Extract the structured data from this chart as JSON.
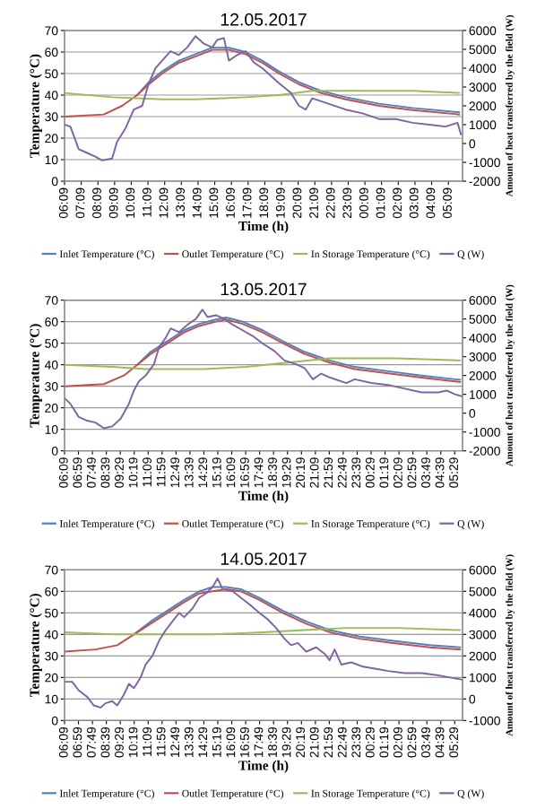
{
  "chart_data": [
    {
      "type": "line",
      "title": "12.05.2017",
      "xlabel": "Time (h)",
      "ylabel": "Temperature (°C)",
      "y2label": "Amount of heat transferred by the field (W)",
      "legend": "bottom",
      "grid": "y",
      "line_style": "solid",
      "marker": "none",
      "xlim": [
        "2017-05-12T06:09",
        "2017-05-13T06:00"
      ],
      "xticks": [
        {
          "value": "2017-05-12T06:09",
          "label": "06:09"
        },
        {
          "value": "2017-05-12T07:09",
          "label": "07:09"
        },
        {
          "value": "2017-05-12T08:09",
          "label": "08:09"
        },
        {
          "value": "2017-05-12T09:09",
          "label": "09:09"
        },
        {
          "value": "2017-05-12T10:09",
          "label": "10:09"
        },
        {
          "value": "2017-05-12T11:09",
          "label": "11:09"
        },
        {
          "value": "2017-05-12T12:09",
          "label": "12:09"
        },
        {
          "value": "2017-05-12T13:09",
          "label": "13:09"
        },
        {
          "value": "2017-05-12T14:09",
          "label": "14:09"
        },
        {
          "value": "2017-05-12T15:09",
          "label": "15:09"
        },
        {
          "value": "2017-05-12T16:09",
          "label": "16:09"
        },
        {
          "value": "2017-05-12T17:09",
          "label": "17:09"
        },
        {
          "value": "2017-05-12T18:09",
          "label": "18:09"
        },
        {
          "value": "2017-05-12T19:09",
          "label": "19:09"
        },
        {
          "value": "2017-05-12T20:09",
          "label": "20:09"
        },
        {
          "value": "2017-05-12T21:09",
          "label": "21:09"
        },
        {
          "value": "2017-05-12T22:09",
          "label": "22:09"
        },
        {
          "value": "2017-05-12T23:09",
          "label": "23:09"
        },
        {
          "value": "2017-05-13T00:09",
          "label": "00:09"
        },
        {
          "value": "2017-05-13T01:09",
          "label": "01:09"
        },
        {
          "value": "2017-05-13T02:09",
          "label": "02:09"
        },
        {
          "value": "2017-05-13T03:09",
          "label": "03:09"
        },
        {
          "value": "2017-05-13T04:09",
          "label": "04:09"
        },
        {
          "value": "2017-05-13T05:09",
          "label": "05:09"
        }
      ],
      "ylim": [
        0,
        70
      ],
      "yticks": [
        0,
        10,
        20,
        30,
        40,
        50,
        60,
        70
      ],
      "y2lim": [
        -2000,
        6000
      ],
      "y2ticks": [
        -2000,
        -1000,
        0,
        1000,
        2000,
        3000,
        4000,
        5000,
        6000
      ],
      "series": [
        {
          "name": "Inlet Temperature (°C)",
          "color": "#4f81bd",
          "x": [
            "2017-05-12T10:30",
            "2017-05-12T11:12",
            "2017-05-12T12:00",
            "2017-05-12T13:00",
            "2017-05-12T14:00",
            "2017-05-12T15:00",
            "2017-05-12T15:36",
            "2017-05-12T16:00",
            "2017-05-12T17:00",
            "2017-05-12T18:00",
            "2017-05-12T19:00",
            "2017-05-12T20:12",
            "2017-05-12T21:30",
            "2017-05-12T23:00",
            "2017-05-13T01:00",
            "2017-05-13T03:00",
            "2017-05-13T05:48"
          ],
          "values": [
            40,
            46,
            51,
            56,
            59,
            62,
            62,
            62,
            60,
            56,
            51,
            46,
            42,
            39,
            36,
            34,
            32
          ]
        },
        {
          "name": "Outlet Temperature (°C)",
          "color": "#c0504d",
          "x": [
            "2017-05-12T06:09",
            "2017-05-12T08:30",
            "2017-05-12T09:36",
            "2017-05-12T10:30",
            "2017-05-12T11:12",
            "2017-05-12T12:00",
            "2017-05-12T13:00",
            "2017-05-12T14:00",
            "2017-05-12T15:00",
            "2017-05-12T16:00",
            "2017-05-12T17:00",
            "2017-05-12T18:00",
            "2017-05-12T19:00",
            "2017-05-12T20:12",
            "2017-05-12T21:30",
            "2017-05-12T23:00",
            "2017-05-13T01:00",
            "2017-05-13T03:00",
            "2017-05-13T05:48"
          ],
          "values": [
            30,
            31,
            35,
            40,
            45,
            50,
            55,
            58,
            61,
            61,
            59,
            55,
            50,
            45,
            41,
            38,
            35,
            33,
            31
          ]
        },
        {
          "name": "In Storage Temperature (°C)",
          "color": "#9bbb59",
          "x": [
            "2017-05-12T06:09",
            "2017-05-12T09:00",
            "2017-05-12T12:00",
            "2017-05-12T14:00",
            "2017-05-12T17:00",
            "2017-05-12T19:00",
            "2017-05-12T21:00",
            "2017-05-13T00:00",
            "2017-05-13T03:00",
            "2017-05-13T05:48"
          ],
          "values": [
            41,
            39,
            38,
            38,
            39,
            40,
            42,
            42,
            42,
            41
          ]
        },
        {
          "name": "Q (W)",
          "color": "#8064a2",
          "axis": "y2",
          "x": [
            "2017-05-12T06:09",
            "2017-05-12T06:30",
            "2017-05-12T07:00",
            "2017-05-12T07:30",
            "2017-05-12T08:00",
            "2017-05-12T08:24",
            "2017-05-12T09:00",
            "2017-05-12T09:18",
            "2017-05-12T09:48",
            "2017-05-12T10:18",
            "2017-05-12T10:48",
            "2017-05-12T11:12",
            "2017-05-12T11:36",
            "2017-05-12T12:00",
            "2017-05-12T12:30",
            "2017-05-12T13:00",
            "2017-05-12T13:30",
            "2017-05-12T14:00",
            "2017-05-12T14:30",
            "2017-05-12T15:00",
            "2017-05-12T15:18",
            "2017-05-12T15:42",
            "2017-05-12T16:00",
            "2017-05-12T16:30",
            "2017-05-12T17:00",
            "2017-05-12T17:30",
            "2017-05-12T18:00",
            "2017-05-12T19:00",
            "2017-05-12T19:42",
            "2017-05-12T20:12",
            "2017-05-12T20:36",
            "2017-05-12T21:00",
            "2017-05-12T22:00",
            "2017-05-12T23:00",
            "2017-05-13T00:00",
            "2017-05-13T01:00",
            "2017-05-13T02:00",
            "2017-05-13T03:00",
            "2017-05-13T04:00",
            "2017-05-13T05:00",
            "2017-05-13T05:42",
            "2017-05-13T05:54"
          ],
          "values": [
            1000,
            900,
            -300,
            -500,
            -700,
            -900,
            -800,
            100,
            800,
            1800,
            2000,
            3200,
            4000,
            4400,
            4900,
            4700,
            5100,
            5700,
            5300,
            5100,
            5500,
            5600,
            4400,
            4700,
            4900,
            4300,
            4000,
            3200,
            2700,
            2000,
            1800,
            2400,
            2100,
            1800,
            1600,
            1300,
            1300,
            1100,
            1000,
            900,
            1100,
            500
          ]
        }
      ]
    },
    {
      "type": "line",
      "title": "13.05.2017",
      "xlabel": "Time (h)",
      "ylabel": "Temperature (°C)",
      "y2label": "Amount of heat transferred by the field (W)",
      "legend": "bottom",
      "grid": "y",
      "line_style": "solid",
      "marker": "none",
      "xlim": [
        "2017-05-13T06:09",
        "2017-05-14T05:57"
      ],
      "xticks": [
        {
          "value": "2017-05-13T06:09",
          "label": "06:09"
        },
        {
          "value": "2017-05-13T06:59",
          "label": "06:59"
        },
        {
          "value": "2017-05-13T07:49",
          "label": "07:49"
        },
        {
          "value": "2017-05-13T08:39",
          "label": "08:39"
        },
        {
          "value": "2017-05-13T09:29",
          "label": "09:29"
        },
        {
          "value": "2017-05-13T10:19",
          "label": "10:19"
        },
        {
          "value": "2017-05-13T11:09",
          "label": "11:09"
        },
        {
          "value": "2017-05-13T11:59",
          "label": "11:59"
        },
        {
          "value": "2017-05-13T12:49",
          "label": "12:49"
        },
        {
          "value": "2017-05-13T13:39",
          "label": "13:39"
        },
        {
          "value": "2017-05-13T14:29",
          "label": "14:29"
        },
        {
          "value": "2017-05-13T15:19",
          "label": "15:19"
        },
        {
          "value": "2017-05-13T16:09",
          "label": "16:09"
        },
        {
          "value": "2017-05-13T16:59",
          "label": "16:59"
        },
        {
          "value": "2017-05-13T17:49",
          "label": "17:49"
        },
        {
          "value": "2017-05-13T18:39",
          "label": "18:39"
        },
        {
          "value": "2017-05-13T19:29",
          "label": "19:29"
        },
        {
          "value": "2017-05-13T20:19",
          "label": "20:19"
        },
        {
          "value": "2017-05-13T21:09",
          "label": "21:09"
        },
        {
          "value": "2017-05-13T21:59",
          "label": "21:59"
        },
        {
          "value": "2017-05-13T22:49",
          "label": "22:49"
        },
        {
          "value": "2017-05-13T23:39",
          "label": "23:39"
        },
        {
          "value": "2017-05-14T00:29",
          "label": "00:29"
        },
        {
          "value": "2017-05-14T01:19",
          "label": "01:19"
        },
        {
          "value": "2017-05-14T02:09",
          "label": "02:09"
        },
        {
          "value": "2017-05-14T02:59",
          "label": "02:59"
        },
        {
          "value": "2017-05-14T03:49",
          "label": "03:49"
        },
        {
          "value": "2017-05-14T04:39",
          "label": "04:39"
        },
        {
          "value": "2017-05-14T05:29",
          "label": "05:29"
        }
      ],
      "ylim": [
        0,
        70
      ],
      "yticks": [
        0,
        10,
        20,
        30,
        40,
        50,
        60,
        70
      ],
      "y2lim": [
        -2000,
        6000
      ],
      "y2ticks": [
        -2000,
        -1000,
        0,
        1000,
        2000,
        3000,
        4000,
        5000,
        6000
      ],
      "series": [
        {
          "name": "Inlet Temperature (°C)",
          "color": "#4f81bd",
          "x": [
            "2017-05-13T10:30",
            "2017-05-13T11:18",
            "2017-05-13T12:18",
            "2017-05-13T13:18",
            "2017-05-13T14:12",
            "2017-05-13T15:12",
            "2017-05-13T15:48",
            "2017-05-13T16:48",
            "2017-05-13T18:00",
            "2017-05-13T19:12",
            "2017-05-13T20:30",
            "2017-05-13T22:00",
            "2017-05-13T23:30",
            "2017-05-14T01:30",
            "2017-05-14T03:30",
            "2017-05-14T05:48"
          ],
          "values": [
            40,
            46,
            51,
            56,
            59,
            61,
            62,
            60,
            56,
            51,
            46,
            42,
            39,
            37,
            35,
            33
          ]
        },
        {
          "name": "Outlet Temperature (°C)",
          "color": "#c0504d",
          "x": [
            "2017-05-13T06:09",
            "2017-05-13T08:30",
            "2017-05-13T09:42",
            "2017-05-13T10:30",
            "2017-05-13T11:18",
            "2017-05-13T12:18",
            "2017-05-13T13:18",
            "2017-05-13T14:12",
            "2017-05-13T15:12",
            "2017-05-13T15:48",
            "2017-05-13T16:48",
            "2017-05-13T18:00",
            "2017-05-13T19:12",
            "2017-05-13T20:30",
            "2017-05-13T22:00",
            "2017-05-13T23:30",
            "2017-05-14T01:30",
            "2017-05-14T03:30",
            "2017-05-14T05:48"
          ],
          "values": [
            30,
            31,
            35,
            40,
            45,
            50,
            55,
            58,
            60,
            61,
            59,
            55,
            50,
            45,
            41,
            38,
            36,
            34,
            32
          ]
        },
        {
          "name": "In Storage Temperature (°C)",
          "color": "#9bbb59",
          "x": [
            "2017-05-13T06:09",
            "2017-05-13T09:00",
            "2017-05-13T11:00",
            "2017-05-13T14:30",
            "2017-05-13T17:00",
            "2017-05-13T19:30",
            "2017-05-13T22:00",
            "2017-05-14T02:00",
            "2017-05-14T05:48"
          ],
          "values": [
            40,
            39,
            38,
            38,
            39,
            41,
            43,
            43,
            42
          ]
        },
        {
          "name": "Q (W)",
          "color": "#8064a2",
          "axis": "y2",
          "x": [
            "2017-05-13T06:09",
            "2017-05-13T06:30",
            "2017-05-13T07:00",
            "2017-05-13T07:30",
            "2017-05-13T08:00",
            "2017-05-13T08:30",
            "2017-05-13T09:00",
            "2017-05-13T09:30",
            "2017-05-13T10:00",
            "2017-05-13T10:18",
            "2017-05-13T10:36",
            "2017-05-13T11:00",
            "2017-05-13T11:30",
            "2017-05-13T11:48",
            "2017-05-13T12:12",
            "2017-05-13T12:30",
            "2017-05-13T13:00",
            "2017-05-13T13:30",
            "2017-05-13T14:00",
            "2017-05-13T14:24",
            "2017-05-13T14:42",
            "2017-05-13T15:12",
            "2017-05-13T15:42",
            "2017-05-13T16:12",
            "2017-05-13T16:48",
            "2017-05-13T17:24",
            "2017-05-13T18:00",
            "2017-05-13T18:42",
            "2017-05-13T19:18",
            "2017-05-13T20:00",
            "2017-05-13T20:30",
            "2017-05-13T21:00",
            "2017-05-13T21:30",
            "2017-05-13T22:00",
            "2017-05-13T23:00",
            "2017-05-13T23:30",
            "2017-05-14T00:30",
            "2017-05-14T01:30",
            "2017-05-14T02:30",
            "2017-05-14T03:30",
            "2017-05-14T04:30",
            "2017-05-14T05:00",
            "2017-05-14T05:30",
            "2017-05-14T05:54"
          ],
          "values": [
            800,
            500,
            -200,
            -400,
            -500,
            -800,
            -700,
            -300,
            500,
            1200,
            1700,
            2000,
            2600,
            3500,
            4000,
            4500,
            4300,
            4700,
            5000,
            5500,
            5100,
            5200,
            5000,
            4700,
            4400,
            4100,
            3700,
            3300,
            2800,
            2600,
            2400,
            1800,
            2100,
            1900,
            1600,
            1800,
            1600,
            1500,
            1300,
            1100,
            1100,
            1200,
            1000,
            900
          ]
        }
      ]
    },
    {
      "type": "line",
      "title": "14.05.2017",
      "xlabel": "Time (h)",
      "ylabel": "Temperature (°C)",
      "y2label": "Amount of heat transferred by the field (W)",
      "legend": "bottom",
      "grid": "y",
      "line_style": "solid",
      "marker": "none",
      "xlim": [
        "2017-05-14T06:09",
        "2017-05-15T05:57"
      ],
      "xticks": [
        {
          "value": "2017-05-14T06:09",
          "label": "06:09"
        },
        {
          "value": "2017-05-14T06:59",
          "label": "06:59"
        },
        {
          "value": "2017-05-14T07:49",
          "label": "07:49"
        },
        {
          "value": "2017-05-14T08:39",
          "label": "08:39"
        },
        {
          "value": "2017-05-14T09:29",
          "label": "09:29"
        },
        {
          "value": "2017-05-14T10:19",
          "label": "10:19"
        },
        {
          "value": "2017-05-14T11:09",
          "label": "11:09"
        },
        {
          "value": "2017-05-14T11:59",
          "label": "11:59"
        },
        {
          "value": "2017-05-14T12:49",
          "label": "12:49"
        },
        {
          "value": "2017-05-14T13:39",
          "label": "13:39"
        },
        {
          "value": "2017-05-14T14:29",
          "label": "14:29"
        },
        {
          "value": "2017-05-14T15:19",
          "label": "15:19"
        },
        {
          "value": "2017-05-14T16:09",
          "label": "16:09"
        },
        {
          "value": "2017-05-14T16:59",
          "label": "16:59"
        },
        {
          "value": "2017-05-14T17:49",
          "label": "17:49"
        },
        {
          "value": "2017-05-14T18:39",
          "label": "18:39"
        },
        {
          "value": "2017-05-14T19:29",
          "label": "19:29"
        },
        {
          "value": "2017-05-14T20:19",
          "label": "20:19"
        },
        {
          "value": "2017-05-14T21:09",
          "label": "21:09"
        },
        {
          "value": "2017-05-14T21:59",
          "label": "21:59"
        },
        {
          "value": "2017-05-14T22:49",
          "label": "22:49"
        },
        {
          "value": "2017-05-14T23:39",
          "label": "23:39"
        },
        {
          "value": "2017-05-15T00:29",
          "label": "00:29"
        },
        {
          "value": "2017-05-15T01:19",
          "label": "01:19"
        },
        {
          "value": "2017-05-15T02:09",
          "label": "02:09"
        },
        {
          "value": "2017-05-15T02:59",
          "label": "02:59"
        },
        {
          "value": "2017-05-15T03:49",
          "label": "03:49"
        },
        {
          "value": "2017-05-15T04:39",
          "label": "04:39"
        },
        {
          "value": "2017-05-15T05:29",
          "label": "05:29"
        }
      ],
      "ylim": [
        0,
        70
      ],
      "yticks": [
        0,
        10,
        20,
        30,
        40,
        50,
        60,
        70
      ],
      "y2lim": [
        -1000,
        6000
      ],
      "y2ticks": [
        -1000,
        0,
        1000,
        2000,
        3000,
        4000,
        5000,
        6000
      ],
      "series": [
        {
          "name": "Inlet Temperature (°C)",
          "color": "#4f81bd",
          "x": [
            "2017-05-14T10:18",
            "2017-05-14T11:18",
            "2017-05-14T12:18",
            "2017-05-14T13:18",
            "2017-05-14T14:12",
            "2017-05-14T15:00",
            "2017-05-14T15:48",
            "2017-05-14T16:42",
            "2017-05-14T17:48",
            "2017-05-14T19:12",
            "2017-05-14T20:36",
            "2017-05-14T22:00",
            "2017-05-14T23:48",
            "2017-05-15T01:48",
            "2017-05-15T04:00",
            "2017-05-15T05:48"
          ],
          "values": [
            40,
            46,
            51,
            56,
            60,
            62,
            62,
            61,
            57,
            51,
            46,
            42,
            39,
            37,
            35,
            34
          ]
        },
        {
          "name": "Outlet Temperature (°C)",
          "color": "#c0504d",
          "x": [
            "2017-05-14T06:09",
            "2017-05-14T08:00",
            "2017-05-14T09:18",
            "2017-05-14T10:18",
            "2017-05-14T11:18",
            "2017-05-14T12:18",
            "2017-05-14T13:18",
            "2017-05-14T14:12",
            "2017-05-14T15:00",
            "2017-05-14T15:48",
            "2017-05-14T16:42",
            "2017-05-14T17:48",
            "2017-05-14T19:12",
            "2017-05-14T20:36",
            "2017-05-14T22:00",
            "2017-05-14T23:48",
            "2017-05-15T01:48",
            "2017-05-15T04:00",
            "2017-05-15T05:48"
          ],
          "values": [
            32,
            33,
            35,
            40,
            45,
            50,
            55,
            59,
            60,
            61,
            60,
            56,
            50,
            45,
            41,
            38,
            36,
            34,
            33
          ]
        },
        {
          "name": "In Storage Temperature (°C)",
          "color": "#9bbb59",
          "x": [
            "2017-05-14T06:09",
            "2017-05-14T09:00",
            "2017-05-14T11:00",
            "2017-05-14T15:00",
            "2017-05-14T18:00",
            "2017-05-14T20:30",
            "2017-05-14T23:00",
            "2017-05-15T02:00",
            "2017-05-15T05:48"
          ],
          "values": [
            41,
            40,
            40,
            40,
            41,
            42,
            43,
            43,
            42
          ]
        },
        {
          "name": "Q (W)",
          "color": "#8064a2",
          "axis": "y2",
          "x": [
            "2017-05-14T06:09",
            "2017-05-14T06:36",
            "2017-05-14T07:00",
            "2017-05-14T07:30",
            "2017-05-14T07:54",
            "2017-05-14T08:18",
            "2017-05-14T08:36",
            "2017-05-14T09:00",
            "2017-05-14T09:18",
            "2017-05-14T09:42",
            "2017-05-14T10:00",
            "2017-05-14T10:18",
            "2017-05-14T10:42",
            "2017-05-14T11:00",
            "2017-05-14T11:24",
            "2017-05-14T11:48",
            "2017-05-14T12:12",
            "2017-05-14T12:36",
            "2017-05-14T13:00",
            "2017-05-14T13:18",
            "2017-05-14T13:48",
            "2017-05-14T14:12",
            "2017-05-14T14:36",
            "2017-05-14T15:00",
            "2017-05-14T15:18",
            "2017-05-14T15:36",
            "2017-05-14T16:12",
            "2017-05-14T16:42",
            "2017-05-14T17:12",
            "2017-05-14T17:48",
            "2017-05-14T18:18",
            "2017-05-14T18:48",
            "2017-05-14T19:18",
            "2017-05-14T19:42",
            "2017-05-14T20:06",
            "2017-05-14T20:36",
            "2017-05-14T21:12",
            "2017-05-14T21:42",
            "2017-05-14T22:00",
            "2017-05-14T22:18",
            "2017-05-14T22:42",
            "2017-05-14T23:18",
            "2017-05-15T00:00",
            "2017-05-15T00:48",
            "2017-05-15T01:30",
            "2017-05-15T02:30",
            "2017-05-15T03:30",
            "2017-05-15T04:30",
            "2017-05-15T05:12",
            "2017-05-15T05:54"
          ],
          "values": [
            800,
            800,
            400,
            100,
            -300,
            -400,
            -200,
            -100,
            -300,
            200,
            700,
            500,
            1000,
            1600,
            2000,
            2700,
            3200,
            3600,
            4000,
            3800,
            4200,
            4700,
            4900,
            5200,
            5600,
            5100,
            5000,
            4700,
            4400,
            4000,
            3700,
            3300,
            2800,
            2500,
            2600,
            2200,
            2400,
            2100,
            1800,
            2300,
            1600,
            1700,
            1500,
            1400,
            1300,
            1200,
            1200,
            1100,
            1000,
            900
          ]
        }
      ]
    }
  ]
}
